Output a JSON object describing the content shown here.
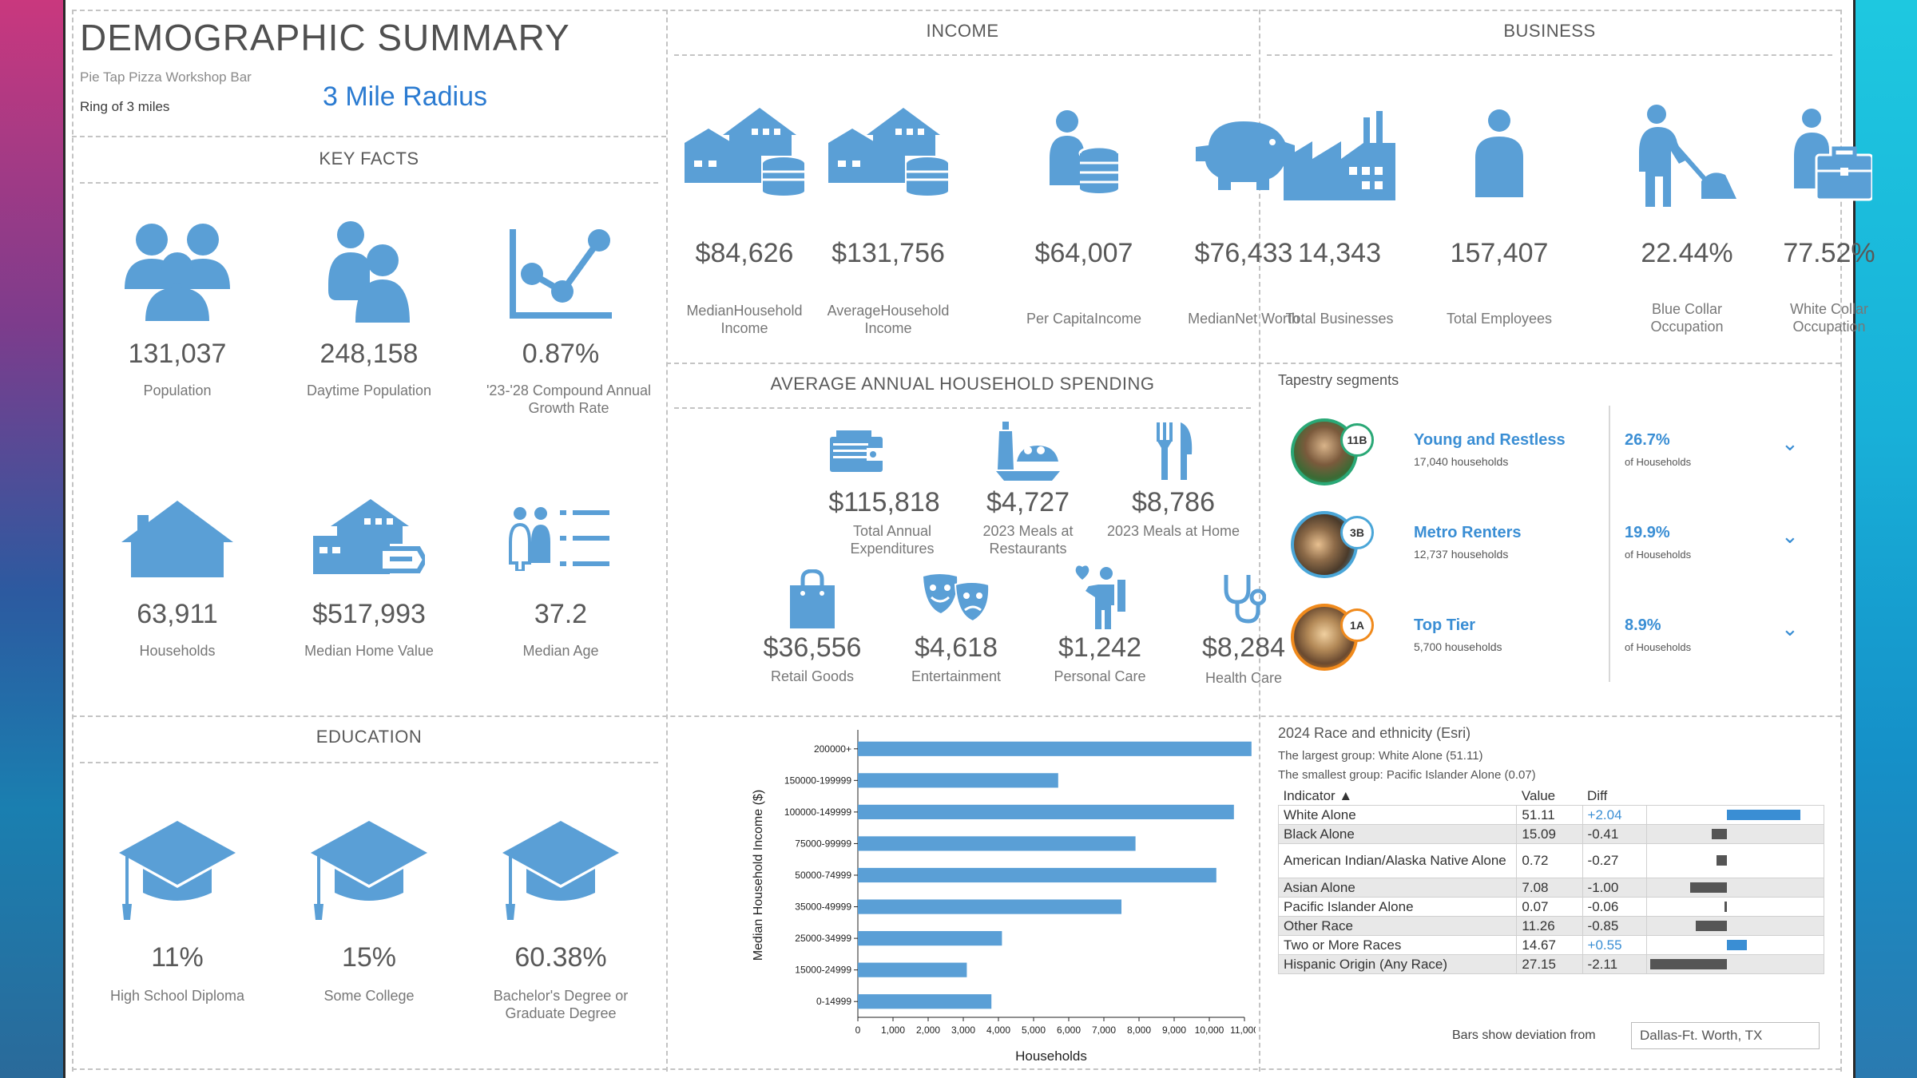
{
  "header": {
    "title": "DEMOGRAPHIC SUMMARY",
    "business_name": "Pie Tap Pizza Workshop Bar",
    "ring": "Ring of 3 miles",
    "radius": "3 Mile Radius"
  },
  "key_facts": {
    "title": "KEY FACTS",
    "items": [
      {
        "value": "131,037",
        "label": "Population",
        "icon": "people-group-icon"
      },
      {
        "value": "248,158",
        "label": "Daytime Population",
        "icon": "people-pair-icon"
      },
      {
        "value": "0.87%",
        "label": "'23-'28 Compound Annual Growth Rate",
        "icon": "growth-chart-icon"
      },
      {
        "value": "63,911",
        "label": "Households",
        "icon": "house-icon"
      },
      {
        "value": "$517,993",
        "label": "Median Home Value",
        "icon": "house-tag-icon"
      },
      {
        "value": "37.2",
        "label": "Median Age",
        "icon": "people-list-icon"
      }
    ]
  },
  "income": {
    "title": "INCOME",
    "items": [
      {
        "value": "$84,626",
        "label": "MedianHousehold Income",
        "icon": "house-coins-icon"
      },
      {
        "value": "$131,756",
        "label": "AverageHousehold Income",
        "icon": "house-coins-icon"
      },
      {
        "value": "$64,007",
        "label": "Per CapitaIncome",
        "icon": "person-coins-icon"
      },
      {
        "value": "$76,433",
        "label": "MedianNet Worth",
        "icon": "piggy-bank-icon"
      }
    ]
  },
  "business": {
    "title": "BUSINESS",
    "items": [
      {
        "value": "14,343",
        "label": "Total Businesses",
        "icon": "factory-icon"
      },
      {
        "value": "157,407",
        "label": "Total Employees",
        "icon": "person-icon"
      },
      {
        "value": "22.44%",
        "label": "Blue Collar Occupation",
        "icon": "worker-icon"
      },
      {
        "value": "77.52%",
        "label": "White Collar Occupation",
        "icon": "briefcase-person-icon"
      }
    ]
  },
  "spending": {
    "title": "AVERAGE ANNUAL HOUSEHOLD SPENDING",
    "items": [
      {
        "value": "$115,818",
        "label": "Total Annual Expenditures",
        "icon": "wallet-icon"
      },
      {
        "value": "$4,727",
        "label": "2023 Meals at Restaurants",
        "icon": "restaurant-meal-icon"
      },
      {
        "value": "$8,786",
        "label": "2023 Meals at Home",
        "icon": "fork-knife-icon"
      },
      {
        "value": "$36,556",
        "label": "Retail Goods",
        "icon": "shopping-bag-icon"
      },
      {
        "value": "$4,618",
        "label": "Entertainment",
        "icon": "theater-masks-icon"
      },
      {
        "value": "$1,242",
        "label": "Personal Care",
        "icon": "personal-care-icon"
      },
      {
        "value": "$8,284",
        "label": "Health Care",
        "icon": "stethoscope-icon"
      }
    ]
  },
  "tapestry": {
    "title": "Tapestry segments",
    "segments": [
      {
        "code": "11B",
        "name": "Young and Restless",
        "households": "17,040 households",
        "pct": "26.7%",
        "pct_label": "of Households",
        "color": "#2aa876"
      },
      {
        "code": "3B",
        "name": "Metro Renters",
        "households": "12,737 households",
        "pct": "19.9%",
        "pct_label": "of Households",
        "color": "#4aa6d8"
      },
      {
        "code": "1A",
        "name": "Top Tier",
        "households": "5,700 households",
        "pct": "8.9%",
        "pct_label": "of Households",
        "color": "#f08a1c"
      }
    ]
  },
  "education": {
    "title": "EDUCATION",
    "items": [
      {
        "value": "11%",
        "label": "High School Diploma",
        "icon": "graduation-cap-icon"
      },
      {
        "value": "15%",
        "label": "Some College",
        "icon": "graduation-cap-icon"
      },
      {
        "value": "60.38%",
        "label": "Bachelor's Degree or Graduate Degree",
        "icon": "graduation-cap-icon"
      }
    ]
  },
  "chart_data": {
    "type": "bar",
    "orientation": "horizontal",
    "categories": [
      "200000+",
      "150000-199999",
      "100000-149999",
      "75000-99999",
      "50000-74999",
      "35000-49999",
      "25000-34999",
      "15000-24999",
      "0-14999"
    ],
    "values": [
      11200,
      5700,
      10700,
      7900,
      10200,
      7500,
      4100,
      3100,
      3800
    ],
    "xlabel": "Households",
    "ylabel": "Median Household Income ($)",
    "xlim": [
      0,
      11000
    ],
    "xticks": [
      "0",
      "1,000",
      "2,000",
      "3,000",
      "4,000",
      "5,000",
      "6,000",
      "7,000",
      "8,000",
      "9,000",
      "10,000",
      "11,000"
    ],
    "grid": false,
    "color": "#5a9fd6"
  },
  "race": {
    "title": "2024 Race and ethnicity (Esri)",
    "largest": "The largest group: White Alone (51.11)",
    "smallest": "The smallest group: Pacific Islander Alone (0.07)",
    "headers": {
      "indicator": "Indicator ▲",
      "value": "Value",
      "diff": "Diff"
    },
    "rows": [
      {
        "indicator": "White Alone",
        "value": "51.11",
        "diff": "+2.04",
        "num": 2.04
      },
      {
        "indicator": "Black Alone",
        "value": "15.09",
        "diff": "-0.41",
        "num": -0.41
      },
      {
        "indicator": "American Indian/Alaska Native Alone",
        "value": "0.72",
        "diff": "-0.27",
        "num": -0.27
      },
      {
        "indicator": "Asian Alone",
        "value": "7.08",
        "diff": "-1.00",
        "num": -1.0
      },
      {
        "indicator": "Pacific Islander Alone",
        "value": "0.07",
        "diff": "-0.06",
        "num": -0.06
      },
      {
        "indicator": "Other Race",
        "value": "11.26",
        "diff": "-0.85",
        "num": -0.85
      },
      {
        "indicator": "Two or More Races",
        "value": "14.67",
        "diff": "+0.55",
        "num": 0.55
      },
      {
        "indicator": "Hispanic Origin (Any Race)",
        "value": "27.15",
        "diff": "-2.11",
        "num": -2.11
      }
    ],
    "deviation_label": "Bars show deviation from",
    "deviation_value": "Dallas-Ft. Worth, TX",
    "colors": {
      "positive": "#3a8ed4",
      "negative": "#555555"
    }
  }
}
